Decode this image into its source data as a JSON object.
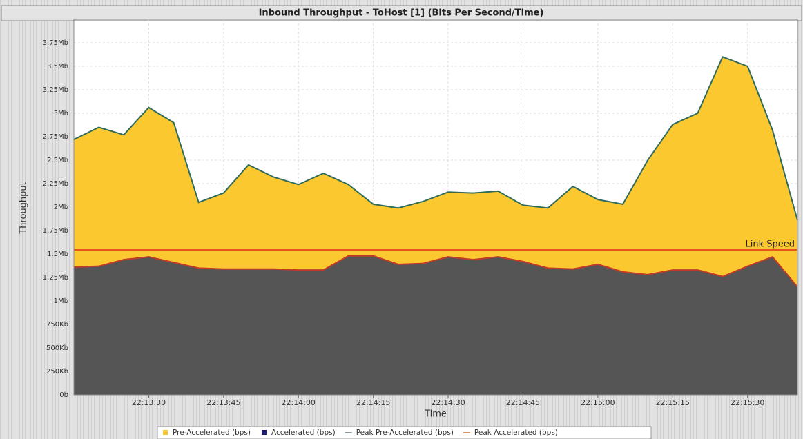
{
  "chart_data": {
    "type": "area",
    "title": "Inbound  Throughput - ToHost [1] (Bits Per Second/Time)",
    "x_label": "Time",
    "y_label": "Throughput",
    "x": [
      "22:13:15",
      "22:13:20",
      "22:13:25",
      "22:13:30",
      "22:13:35",
      "22:13:40",
      "22:13:45",
      "22:13:50",
      "22:13:55",
      "22:14:00",
      "22:14:05",
      "22:14:10",
      "22:14:15",
      "22:14:20",
      "22:14:25",
      "22:14:30",
      "22:14:35",
      "22:14:40",
      "22:14:45",
      "22:14:50",
      "22:14:55",
      "22:15:00",
      "22:15:05",
      "22:15:10",
      "22:15:15",
      "22:15:20",
      "22:15:25",
      "22:15:30",
      "22:15:35",
      "22:15:40"
    ],
    "series": [
      {
        "color": "#fcc830",
        "line_color": "#2f6a5a",
        "values": [
          2.72,
          2.85,
          2.77,
          3.06,
          2.9,
          2.05,
          2.15,
          2.45,
          2.32,
          2.24,
          2.36,
          2.24,
          2.03,
          1.99,
          2.06,
          2.16,
          2.15,
          2.17,
          2.02,
          1.99,
          2.22,
          2.08,
          2.03,
          2.5,
          2.88,
          3.0,
          3.6,
          3.5,
          2.82,
          1.86
        ]
      },
      {
        "color": "#555555",
        "line_color": "#c0392b",
        "values": [
          1.36,
          1.37,
          1.44,
          1.47,
          1.41,
          1.35,
          1.34,
          1.34,
          1.34,
          1.33,
          1.33,
          1.48,
          1.48,
          1.39,
          1.4,
          1.47,
          1.44,
          1.47,
          1.42,
          1.35,
          1.34,
          1.39,
          1.31,
          1.28,
          1.33,
          1.33,
          1.26,
          1.37,
          1.47,
          1.15
        ]
      }
    ],
    "reference_line": {
      "label": "Link Speed",
      "value": 1.544,
      "color": "#e0301e"
    },
    "xlim": [
      "22:13:15",
      "22:15:40"
    ],
    "xticks": [
      "22:13:30",
      "22:13:45",
      "22:14:00",
      "22:14:15",
      "22:14:30",
      "22:14:45",
      "22:15:00",
      "22:15:15",
      "22:15:30"
    ],
    "ylim": [
      0,
      4
    ],
    "yticks": [
      {
        "value": 0,
        "label": "0b"
      },
      {
        "value": 0.25,
        "label": "250Kb"
      },
      {
        "value": 0.5,
        "label": "500Kb"
      },
      {
        "value": 0.75,
        "label": "750Kb"
      },
      {
        "value": 1,
        "label": "1Mb"
      },
      {
        "value": 1.25,
        "label": "1.25Mb"
      },
      {
        "value": 1.5,
        "label": "1.5Mb"
      },
      {
        "value": 1.75,
        "label": "1.75Mb"
      },
      {
        "value": 2,
        "label": "2Mb"
      },
      {
        "value": 2.25,
        "label": "2.25Mb"
      },
      {
        "value": 2.5,
        "label": "2.5Mb"
      },
      {
        "value": 2.75,
        "label": "2.75Mb"
      },
      {
        "value": 3,
        "label": "3Mb"
      },
      {
        "value": 3.25,
        "label": "3.25Mb"
      },
      {
        "value": 3.5,
        "label": "3.5Mb"
      },
      {
        "value": 3.75,
        "label": "3.75Mb"
      }
    ],
    "grid": true,
    "legend": [
      {
        "name": "Pre-Accelerated (bps)",
        "color": "#fcc830",
        "marker": "square"
      },
      {
        "name": "Accelerated (bps)",
        "color": "#1a1a6e",
        "marker": "square"
      },
      {
        "name": "Peak Pre-Accelerated (bps)",
        "color": "#6a7a80",
        "marker": "line"
      },
      {
        "name": "Peak Accelerated (bps)",
        "color": "#d2691e",
        "marker": "line"
      }
    ]
  }
}
